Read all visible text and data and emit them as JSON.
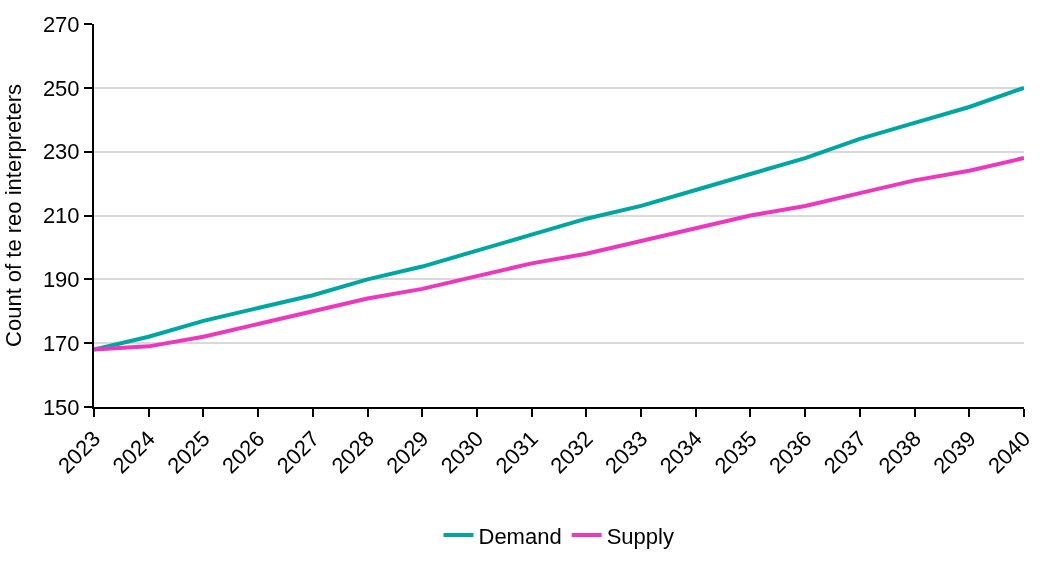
{
  "chart_data": {
    "type": "line",
    "ylabel": "Count of te reo interpreters",
    "categories": [
      "2023",
      "2024",
      "2025",
      "2026",
      "2027",
      "2028",
      "2029",
      "2030",
      "2031",
      "2032",
      "2033",
      "2034",
      "2035",
      "2036",
      "2037",
      "2038",
      "2039",
      "2040"
    ],
    "series": [
      {
        "name": "Demand",
        "color": "#00a6a0",
        "values": [
          168,
          172,
          177,
          181,
          185,
          190,
          194,
          199,
          204,
          209,
          213,
          218,
          223,
          228,
          234,
          239,
          244,
          250
        ]
      },
      {
        "name": "Supply",
        "color": "#ec38bc",
        "values": [
          168,
          169,
          172,
          176,
          180,
          184,
          187,
          191,
          195,
          198,
          202,
          206,
          210,
          213,
          217,
          221,
          224,
          228
        ]
      }
    ],
    "ylim": [
      150,
      270
    ],
    "yticks": [
      150,
      170,
      190,
      210,
      230,
      250,
      270
    ],
    "grid": "y",
    "legend": "bottom",
    "marker": "none",
    "line_style": "solid"
  }
}
